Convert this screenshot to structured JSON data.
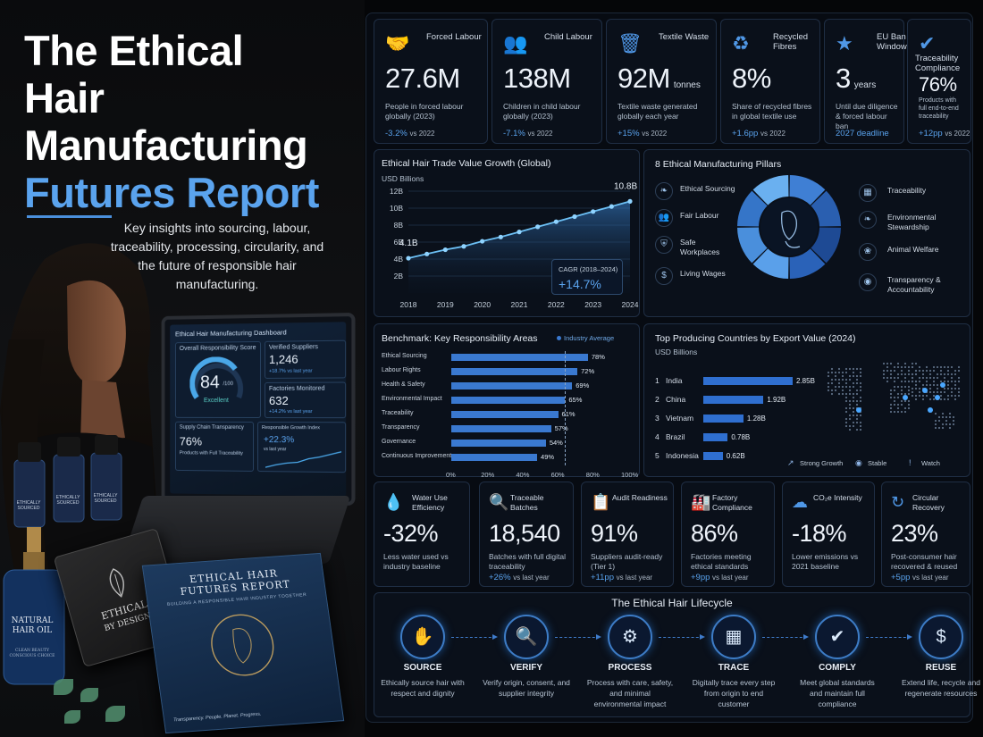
{
  "report": {
    "title_line1": "The Ethical",
    "title_line2": "Hair",
    "title_line3": "Manufacturing",
    "title_line4": "Futures Report",
    "subtitle": "Key insights into sourcing, labour, traceability, processing, circularity, and the future of responsible hair manufacturing."
  },
  "tablet": {
    "title": "Ethical Hair Manufacturing Dashboard",
    "score_label": "Overall Responsibility Score",
    "score": "84",
    "score_max": "/100",
    "score_status": "Excellent",
    "suppliers_label": "Verified Suppliers",
    "suppliers_value": "1,246",
    "suppliers_change": "+18.7% vs last year",
    "factories_label": "Factories Monitored",
    "factories_value": "632",
    "factories_change": "+14.2% vs last year",
    "transparency_label": "Supply Chain Transparency",
    "transparency_value": "76%",
    "transparency_desc": "Products with Full Traceability",
    "growth_label": "Responsible Growth Index",
    "growth_value": "+22.3%",
    "growth_desc": "vs last year"
  },
  "props": {
    "bottle_label": "ETHICALLY SOURCED",
    "oil_label_1": "NATURAL",
    "oil_label_2": "HAIR OIL",
    "oil_label_3": "CLEAN BEAUTY CONSCIOUS CHOICE",
    "tag_line1": "ETHICAL",
    "tag_line2": "BY DESIGN",
    "book_title1": "ETHICAL HAIR",
    "book_title2": "FUTURES REPORT",
    "book_sub": "BUILDING A RESPONSIBLE HAIR INDUSTRY TOGETHER",
    "book_footer": "Transparency. People. Planet. Progress."
  },
  "kpis_top": [
    {
      "icon": "people-hands-icon",
      "label": "Forced Labour",
      "value": "27.6M",
      "unit": "",
      "desc": "People in forced labour globally (2023)",
      "change": "-3.2%",
      "vs": "vs 2022"
    },
    {
      "icon": "children-icon",
      "label": "Child Labour",
      "value": "138M",
      "unit": "",
      "desc": "Children in child labour globally (2023)",
      "change": "-7.1%",
      "vs": "vs 2022"
    },
    {
      "icon": "trash-bin-icon",
      "label": "Textile Waste",
      "value": "92M",
      "unit": "tonnes",
      "desc": "Textile waste generated globally each year",
      "change": "+15%",
      "vs": "vs 2022"
    },
    {
      "icon": "recycle-icon",
      "label": "Recycled Fibres",
      "value": "8%",
      "unit": "",
      "desc": "Share of recycled fibres in global textile use",
      "change": "+1.6pp",
      "vs": "vs 2022"
    },
    {
      "icon": "eu-flag-icon",
      "label": "EU Ban Window",
      "value": "3",
      "unit": "years",
      "desc": "Until due diligence & forced labour ban",
      "change": "2027 deadline",
      "vs": ""
    },
    {
      "icon": "shield-check-icon",
      "label": "Traceability Compliance",
      "value": "76%",
      "unit": "",
      "desc": "Products with full end-to-end traceability",
      "change": "+12pp",
      "vs": "vs 2022"
    }
  ],
  "trade_chart": {
    "title": "Ethical Hair Trade Value Growth (Global)",
    "unit": "USD Billions",
    "start_label": "4.1B",
    "end_label": "10.8B",
    "cagr_label": "CAGR (2018–2024)",
    "cagr_value": "+14.7%"
  },
  "pillars": {
    "title": "8 Ethical Manufacturing Pillars",
    "left": [
      {
        "icon": "leaf-hand-icon",
        "label": "Ethical Sourcing"
      },
      {
        "icon": "people-icon",
        "label": "Fair Labour"
      },
      {
        "icon": "shield-icon",
        "label": "Safe Workplaces"
      },
      {
        "icon": "dollar-circle-icon",
        "label": "Living Wages"
      }
    ],
    "right": [
      {
        "icon": "qr-code-icon",
        "label": "Traceability"
      },
      {
        "icon": "leaf-icon",
        "label": "Environmental Stewardship"
      },
      {
        "icon": "paw-icon",
        "label": "Animal Welfare"
      },
      {
        "icon": "eye-icon",
        "label": "Transparency & Accountability"
      }
    ]
  },
  "benchmark": {
    "title": "Benchmark: Key Responsibility Areas",
    "legend": "Industry Average"
  },
  "countries": {
    "title": "Top Producing Countries by Export Value (2024)",
    "unit": "USD Billions",
    "legend": [
      {
        "icon": "growth-arrow-icon",
        "label": "Strong Growth"
      },
      {
        "icon": "dot-circle-icon",
        "label": "Stable"
      },
      {
        "icon": "alert-icon",
        "label": "Watch"
      }
    ]
  },
  "kpis_mid": [
    {
      "icon": "water-drop-icon",
      "label": "Water Use Efficiency",
      "value": "-32%",
      "desc": "Less water used vs industry baseline",
      "change": "",
      "vs": ""
    },
    {
      "icon": "search-doc-icon",
      "label": "Traceable Batches",
      "value": "18,540",
      "desc": "Batches with full digital traceability",
      "change": "+26%",
      "vs": "vs last year"
    },
    {
      "icon": "clipboard-icon",
      "label": "Audit Readiness",
      "value": "91%",
      "desc": "Suppliers audit-ready (Tier 1)",
      "change": "+11pp",
      "vs": "vs last year"
    },
    {
      "icon": "factory-icon",
      "label": "Factory Compliance",
      "value": "86%",
      "desc": "Factories meeting ethical standards",
      "change": "+9pp",
      "vs": "vs last year"
    },
    {
      "icon": "co2-cloud-icon",
      "label": "CO₂e Intensity",
      "value": "-18%",
      "desc": "Lower emissions vs 2021 baseline",
      "change": "",
      "vs": ""
    },
    {
      "icon": "circular-arrow-icon",
      "label": "Circular Recovery",
      "value": "23%",
      "desc": "Post-consumer hair recovered & reused",
      "change": "+5pp",
      "vs": "vs last year"
    }
  ],
  "lifecycle": {
    "title": "The  Ethical Hair Lifecycle",
    "steps": [
      {
        "icon": "hands-hair-icon",
        "name": "SOURCE",
        "desc": "Ethically source hair with respect and dignity"
      },
      {
        "icon": "clipboard-search-icon",
        "name": "VERIFY",
        "desc": "Verify origin, consent, and supplier integrity"
      },
      {
        "icon": "gear-icon",
        "name": "PROCESS",
        "desc": "Process with care, safety, and minimal environmental impact"
      },
      {
        "icon": "qr-code-icon",
        "name": "TRACE",
        "desc": "Digitally trace every step from origin to end customer"
      },
      {
        "icon": "shield-check-icon",
        "name": "COMPLY",
        "desc": "Meet global standards and maintain full compliance"
      },
      {
        "icon": "recycle-dollar-icon",
        "name": "REUSE",
        "desc": "Extend life, recycle and regenerate resources"
      }
    ]
  },
  "colors": {
    "accent": "#4f97e6",
    "positive": "#5aa3ee",
    "bar": "#3a79d0",
    "panel": "#0a101a"
  },
  "chart_data": [
    {
      "type": "area",
      "title": "Ethical Hair Trade Value Growth (Global)",
      "ylabel": "USD Billions",
      "x": [
        2018,
        2018.5,
        2019,
        2019.5,
        2020,
        2020.5,
        2021,
        2021.5,
        2022,
        2022.5,
        2023,
        2023.5,
        2024
      ],
      "values": [
        4.1,
        4.6,
        5.1,
        5.5,
        6.1,
        6.6,
        7.2,
        7.8,
        8.4,
        9.0,
        9.6,
        10.2,
        10.8
      ],
      "x_ticks": [
        "2018",
        "2019",
        "2020",
        "2021",
        "2022",
        "2023",
        "2024"
      ],
      "y_ticks": [
        "2B",
        "4B",
        "6B",
        "8B",
        "10B",
        "12B"
      ],
      "ylim": [
        0,
        12
      ],
      "grid": true
    },
    {
      "type": "pie",
      "title": "8 Ethical Manufacturing Pillars",
      "categories": [
        "Ethical Sourcing",
        "Fair Labour",
        "Safe Workplaces",
        "Living Wages",
        "Traceability",
        "Environmental Stewardship",
        "Animal Welfare",
        "Transparency & Accountability"
      ],
      "values": [
        1,
        1,
        1,
        1,
        1,
        1,
        1,
        1
      ]
    },
    {
      "type": "bar",
      "title": "Benchmark: Key Responsibility Areas",
      "orientation": "horizontal",
      "categories": [
        "Ethical Sourcing",
        "Labour Rights",
        "Health & Safety",
        "Environmental Impact",
        "Traceability",
        "Transparency",
        "Governance",
        "Continuous Improvement"
      ],
      "values": [
        78,
        72,
        69,
        65,
        61,
        57,
        54,
        49
      ],
      "x_ticks": [
        "0%",
        "20%",
        "40%",
        "60%",
        "80%",
        "100%"
      ],
      "xlim": [
        0,
        100
      ],
      "legend": "Industry Average"
    },
    {
      "type": "bar",
      "title": "Top Producing Countries by Export Value (2024)",
      "orientation": "horizontal",
      "ylabel": "USD Billions",
      "categories": [
        "India",
        "China",
        "Vietnam",
        "Brazil",
        "Indonesia"
      ],
      "ranks": [
        "1",
        "2",
        "3",
        "4",
        "5"
      ],
      "values": [
        2.85,
        1.92,
        1.28,
        0.78,
        0.62
      ],
      "value_labels": [
        "2.85B",
        "1.92B",
        "1.28B",
        "0.78B",
        "0.62B"
      ]
    }
  ]
}
